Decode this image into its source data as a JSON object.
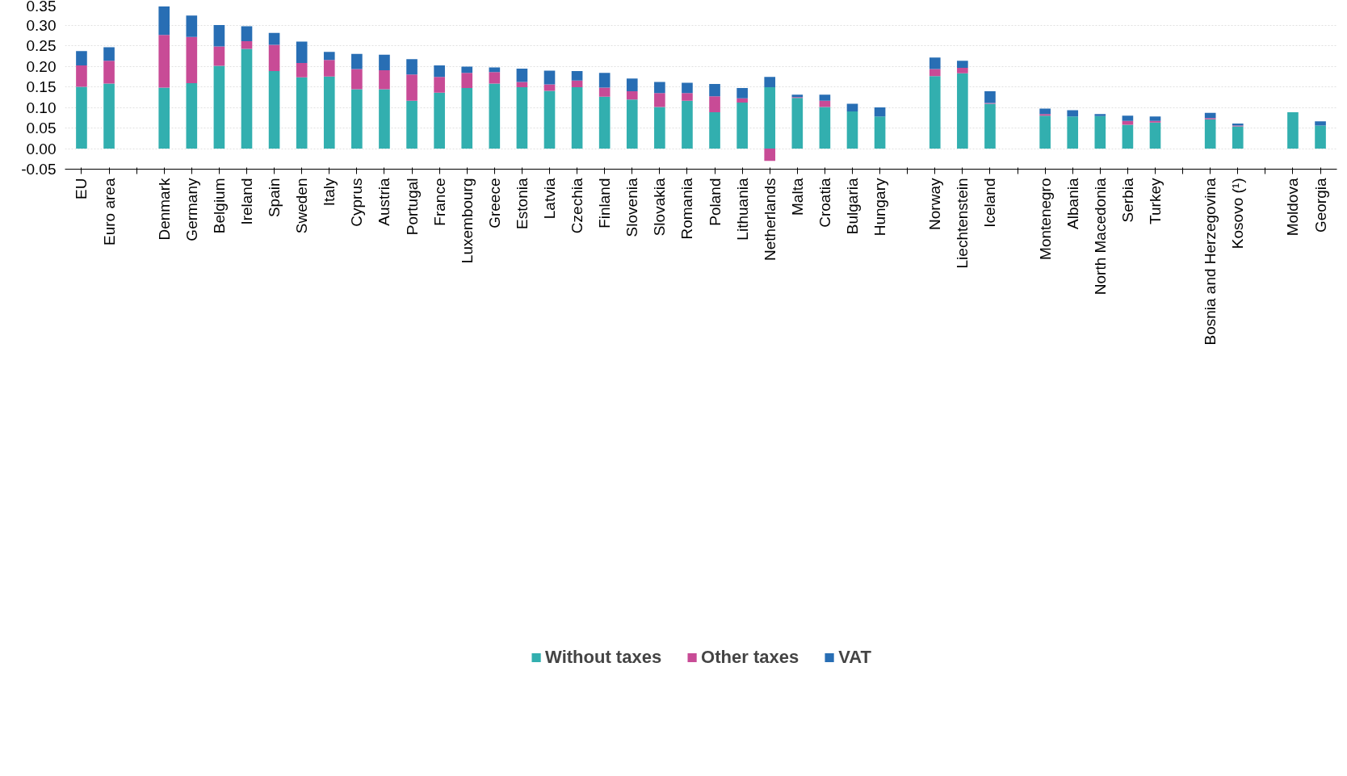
{
  "chart_data": {
    "type": "bar",
    "stacked": true,
    "categories": [
      "EU",
      "Euro area",
      null,
      "Denmark",
      "Germany",
      "Belgium",
      "Ireland",
      "Spain",
      "Sweden",
      "Italy",
      "Cyprus",
      "Austria",
      "Portugal",
      "France",
      "Luxembourg",
      "Greece",
      "Estonia",
      "Latvia",
      "Czechia",
      "Finland",
      "Slovenia",
      "Slovakia",
      "Romania",
      "Poland",
      "Lithuania",
      "Netherlands",
      "Malta",
      "Croatia",
      "Bulgaria",
      "Hungary",
      null,
      "Norway",
      "Liechtenstein",
      "Iceland",
      null,
      "Montenegro",
      "Albania",
      "North Macedonia",
      "Serbia",
      "Turkey",
      null,
      "Bosnia and Herzegovina",
      "Kosovo (¹)",
      null,
      "Moldova",
      "Georgia"
    ],
    "series": [
      {
        "name": "Without taxes",
        "color": "#32afaf",
        "values": [
          0.15,
          0.158,
          null,
          0.148,
          0.159,
          0.201,
          0.242,
          0.188,
          0.173,
          0.175,
          0.144,
          0.144,
          0.116,
          0.136,
          0.147,
          0.158,
          0.149,
          0.14,
          0.149,
          0.126,
          0.119,
          0.101,
          0.116,
          0.088,
          0.112,
          0.149,
          0.123,
          0.101,
          0.09,
          0.078,
          null,
          0.176,
          0.183,
          0.109,
          null,
          0.08,
          0.078,
          0.079,
          0.058,
          0.063,
          null,
          0.071,
          0.054,
          null,
          0.088,
          0.056
        ]
      },
      {
        "name": "Other taxes",
        "color": "#c84b96",
        "values": [
          0.052,
          0.055,
          null,
          0.128,
          0.112,
          0.047,
          0.019,
          0.064,
          0.035,
          0.04,
          0.049,
          0.046,
          0.064,
          0.038,
          0.037,
          0.028,
          0.013,
          0.016,
          0.016,
          0.022,
          0.02,
          0.034,
          0.019,
          0.039,
          0.01,
          -0.03,
          0.002,
          0.015,
          null,
          null,
          null,
          0.017,
          0.013,
          0.002,
          null,
          0.004,
          null,
          null,
          0.009,
          0.004,
          null,
          0.003,
          0.002,
          null,
          null,
          null
        ]
      },
      {
        "name": "VAT",
        "color": "#286eb4",
        "values": [
          0.035,
          0.033,
          null,
          0.069,
          0.052,
          0.052,
          0.036,
          0.029,
          0.052,
          0.02,
          0.037,
          0.038,
          0.037,
          0.028,
          0.015,
          0.011,
          0.032,
          0.033,
          0.023,
          0.036,
          0.031,
          0.027,
          0.025,
          0.03,
          0.025,
          0.025,
          0.006,
          0.015,
          0.019,
          0.022,
          null,
          0.028,
          0.017,
          0.028,
          null,
          0.013,
          0.015,
          0.005,
          0.013,
          0.011,
          null,
          0.013,
          0.005,
          null,
          null,
          0.01
        ]
      }
    ],
    "ylim": [
      -0.05,
      0.35
    ],
    "yticks": [
      {
        "value": -0.05,
        "label": "-0.05"
      },
      {
        "value": 0,
        "label": "0.00"
      },
      {
        "value": 0.05,
        "label": "0.05"
      },
      {
        "value": 0.1,
        "label": "0.10"
      },
      {
        "value": 0.15,
        "label": "0.15"
      },
      {
        "value": 0.2,
        "label": "0.20"
      },
      {
        "value": 0.25,
        "label": "0.25"
      },
      {
        "value": 0.3,
        "label": "0.30"
      },
      {
        "value": 0.35,
        "label": "0.35"
      }
    ],
    "grid": "y",
    "legend": "bottom"
  }
}
